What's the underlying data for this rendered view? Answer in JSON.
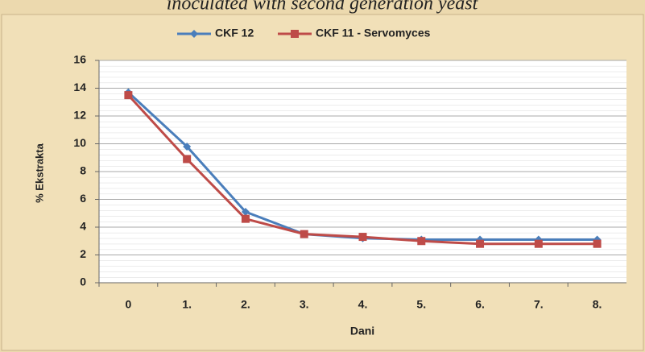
{
  "chart_data": {
    "type": "line",
    "title": "inoculated with second generation yeast",
    "categories": [
      "0",
      "1.",
      "2.",
      "3.",
      "4.",
      "5.",
      "6.",
      "7.",
      "8."
    ],
    "series": [
      {
        "name": "CKF 12",
        "color": "#4a7ebb",
        "values": [
          13.7,
          9.8,
          5.1,
          3.5,
          3.2,
          3.1,
          3.1,
          3.1,
          3.1
        ]
      },
      {
        "name": "CKF 11 - Servomyces",
        "color": "#be4b48",
        "values": [
          13.5,
          8.9,
          4.6,
          3.5,
          3.3,
          3.0,
          2.8,
          2.8,
          2.8
        ]
      }
    ],
    "ylim": [
      0,
      16
    ],
    "yticks": [
      0,
      2,
      4,
      6,
      8,
      10,
      12,
      14,
      16
    ],
    "grid": true,
    "y_label": "% Ekstrakta",
    "x_label": "Dani",
    "legend": "top"
  }
}
